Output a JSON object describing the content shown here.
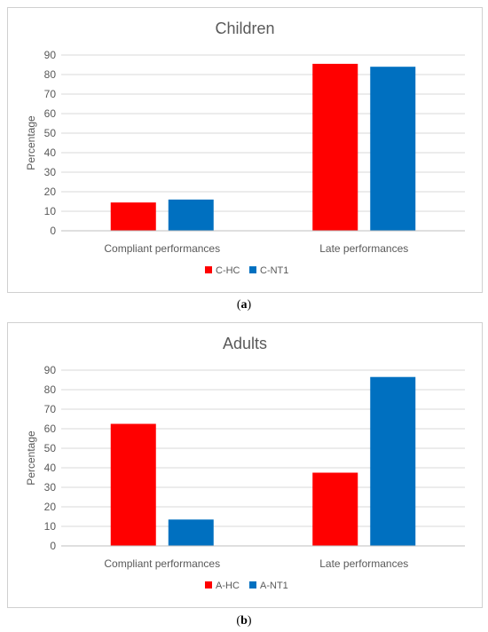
{
  "chart_data": [
    {
      "type": "bar",
      "title": "Children",
      "ylabel": "Percentage",
      "xlabel": "",
      "ylim": [
        0,
        90
      ],
      "yticks": [
        0,
        10,
        20,
        30,
        40,
        50,
        60,
        70,
        80,
        90
      ],
      "categories": [
        "Compliant performances",
        "Late performances"
      ],
      "series": [
        {
          "name": "C-HC",
          "color": "#ff0000",
          "values": [
            14.5,
            85.5
          ]
        },
        {
          "name": "C-NT1",
          "color": "#0070c0",
          "values": [
            16,
            84
          ]
        }
      ],
      "grid": true,
      "legend": "bottom",
      "caption_letter": "a"
    },
    {
      "type": "bar",
      "title": "Adults",
      "ylabel": "Percentage",
      "xlabel": "",
      "ylim": [
        0,
        90
      ],
      "yticks": [
        0,
        10,
        20,
        30,
        40,
        50,
        60,
        70,
        80,
        90
      ],
      "categories": [
        "Compliant performances",
        "Late performances"
      ],
      "series": [
        {
          "name": "A-HC",
          "color": "#ff0000",
          "values": [
            62.5,
            37.5
          ]
        },
        {
          "name": "A-NT1",
          "color": "#0070c0",
          "values": [
            13.5,
            86.5
          ]
        }
      ],
      "grid": true,
      "legend": "bottom",
      "caption_letter": "b"
    }
  ]
}
